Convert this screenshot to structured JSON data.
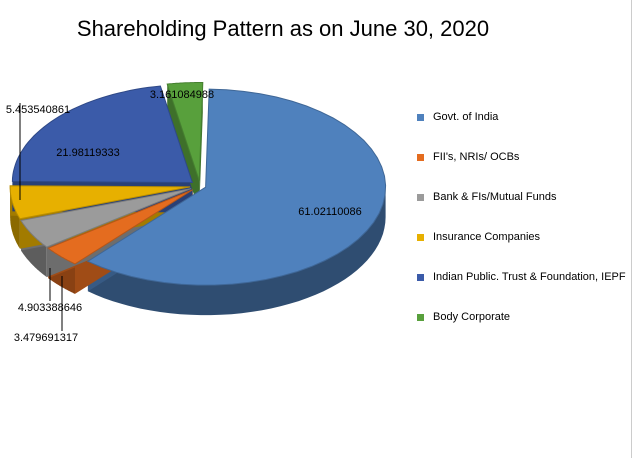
{
  "chart_data": {
    "type": "pie3d",
    "title": "Shareholding Pattern as on June 30, 2020",
    "categories": [
      "Govt. of India",
      "FII's, NRIs/ OCBs",
      "Bank & FIs/Mutual Funds",
      "Insurance Companies",
      "Indian Public. Trust & Foundation, IEPF",
      "Body Corporate"
    ],
    "values": [
      61.02110086,
      3.479691317,
      4.903388646,
      5.453540861,
      21.98119333,
      3.161084988
    ],
    "colors": [
      "#4f81bd",
      "#e46c1f",
      "#9b9b9b",
      "#e7b000",
      "#3b5ba9",
      "#58a03c"
    ],
    "legend": "right"
  }
}
